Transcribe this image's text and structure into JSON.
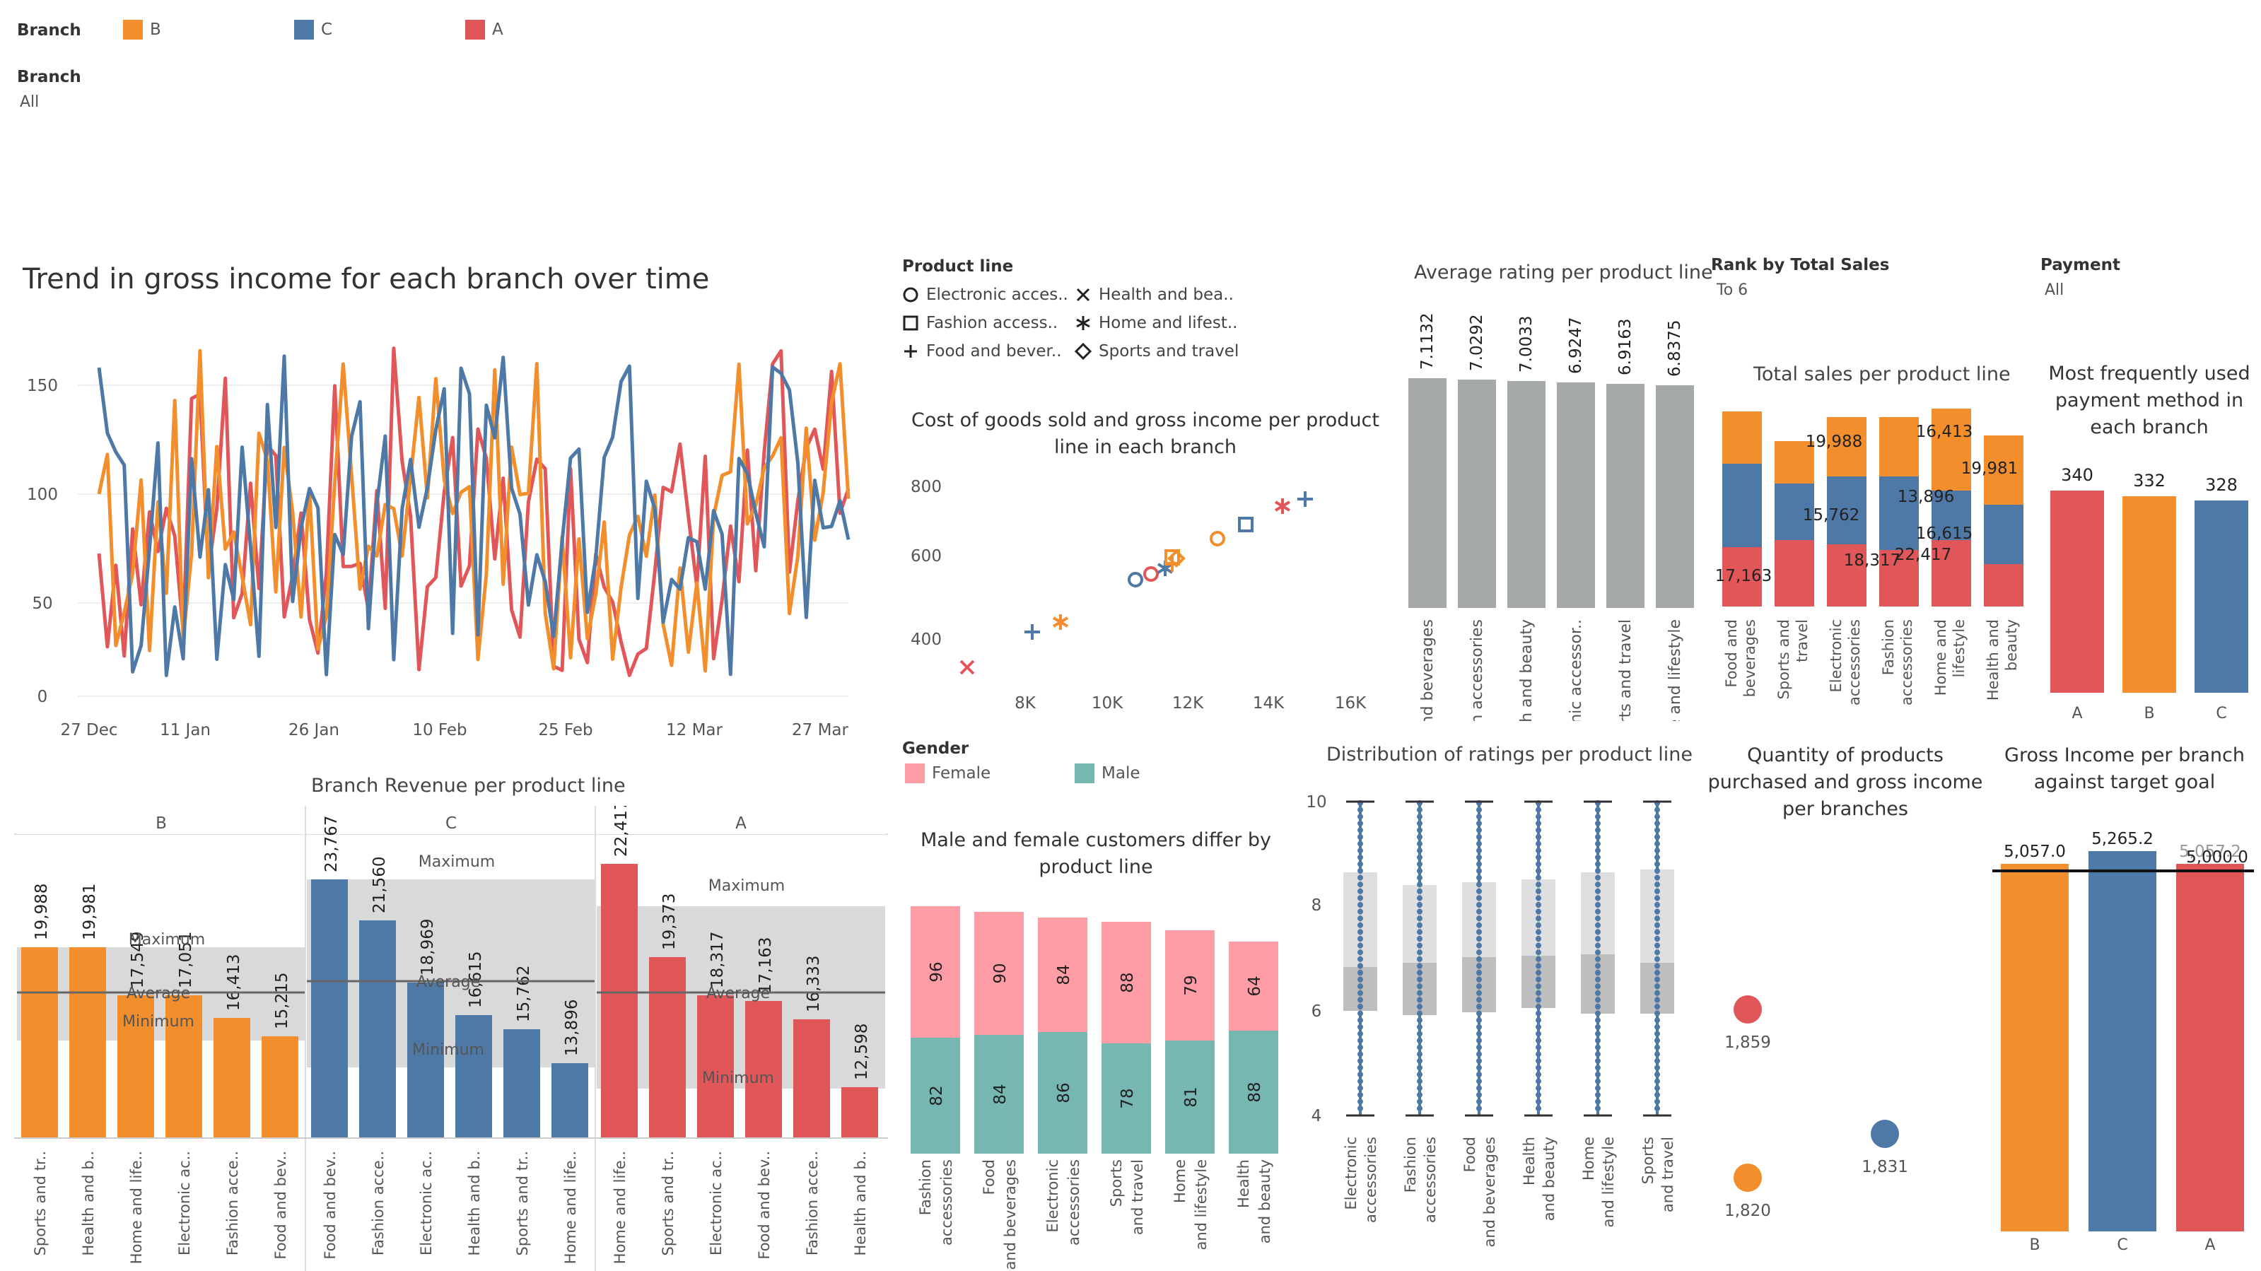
{
  "colors": {
    "A": "#e15759",
    "B": "#f28e2b",
    "C": "#4e79a7",
    "gray": "#a5aaa8",
    "female": "#ff9da7",
    "male": "#76b7b2"
  },
  "branch_legend": {
    "title": "Branch",
    "items": [
      {
        "name": "B",
        "color": "#f28e2b"
      },
      {
        "name": "C",
        "color": "#4e79a7"
      },
      {
        "name": "A",
        "color": "#e15759"
      }
    ]
  },
  "branch_filter": {
    "title": "Branch",
    "value": "All"
  },
  "trend": {
    "title": "Trend in gross income for each branch over time",
    "yticks": [
      "150",
      "100",
      "50",
      "0"
    ],
    "xticks": [
      "27 Dec",
      "11 Jan",
      "26 Jan",
      "10 Feb",
      "25 Feb",
      "12 Mar",
      "27 Mar"
    ]
  },
  "product_legend": {
    "title": "Product line",
    "items": [
      {
        "label": "Electronic acces..",
        "icon": "circle-icon"
      },
      {
        "label": "Health and bea..",
        "icon": "x-icon"
      },
      {
        "label": "Fashion access..",
        "icon": "square-icon"
      },
      {
        "label": "Home and lifest..",
        "icon": "asterisk-icon"
      },
      {
        "label": "Food and bever..",
        "icon": "plus-icon"
      },
      {
        "label": "Sports and travel",
        "icon": "diamond-icon"
      }
    ]
  },
  "scatter": {
    "title": "Cost of goods sold and gross income per product line in each branch",
    "yticks": [
      "800",
      "600",
      "400"
    ],
    "xticks": [
      "8K",
      "10K",
      "12K",
      "14K",
      "16K"
    ]
  },
  "rating": {
    "title": "Average rating per product line",
    "categories": [
      "Food and beverages",
      "Fashion accessories",
      "Health and beauty",
      "Electronic accessor..",
      "Sports and travel",
      "Home and lifestyle"
    ],
    "values": [
      "7.1132",
      "7.0292",
      "7.0033",
      "6.9247",
      "6.9163",
      "6.8375"
    ]
  },
  "rank_filter": {
    "title": "Rank by Total Sales",
    "value": "To 6"
  },
  "payment_filter": {
    "title": "Payment",
    "value": "All"
  },
  "total_sales": {
    "title": "Total sales per product line",
    "categories": [
      "Food and beverages",
      "Sports and travel",
      "Electronic accessories",
      "Fashion accessories",
      "Home and lifestyle",
      "Health and beauty"
    ],
    "labels": [
      "17,163",
      "19,988",
      "15,762",
      "18,317",
      "16,413",
      "22,417",
      "13,896",
      "16,615",
      "19,981"
    ]
  },
  "payment": {
    "title": "Most frequently used payment method in each branch",
    "categories": [
      "A",
      "B",
      "C"
    ],
    "values": [
      "340",
      "332",
      "328"
    ]
  },
  "gender_legend": {
    "title": "Gender",
    "female": "Female",
    "male": "Male"
  },
  "gender": {
    "title": "Male and female customers differ by product line",
    "categories": [
      "Fashion accessories",
      "Food and beverages",
      "Electronic accessories",
      "Sports and travel",
      "Home and lifestyle",
      "Health and beauty"
    ],
    "female": [
      "96",
      "90",
      "84",
      "88",
      "79",
      "64"
    ],
    "male": [
      "82",
      "84",
      "86",
      "78",
      "81",
      "88"
    ]
  },
  "distribution": {
    "title": "Distribution of ratings per product line",
    "yticks": [
      "10",
      "8",
      "6",
      "4"
    ],
    "categories": [
      "Electronic accessories",
      "Fashion accessories",
      "Food and beverages",
      "Health and beauty",
      "Home and lifestyle",
      "Sports and travel"
    ]
  },
  "quantity": {
    "title": "Quantity of products purchased and gross income per branches",
    "labels": [
      "1,859",
      "1,820",
      "1,831"
    ]
  },
  "goal": {
    "title": "Gross Income per branch against target goal",
    "labels": [
      "5,057.0",
      "5,265.2",
      "5,057.2",
      "5,000.0"
    ],
    "categories": [
      "B",
      "C",
      "A"
    ]
  },
  "revenue": {
    "title": "Branch Revenue per product line",
    "panels": [
      {
        "name": "B",
        "values": [
          "19,988",
          "19,981",
          "17,549",
          "17,051",
          "16,413",
          "15,215"
        ],
        "cats": [
          "Sports and tr..",
          "Health and b..",
          "Home and life..",
          "Electronic ac..",
          "Fashion acce..",
          "Food and bev.."
        ]
      },
      {
        "name": "C",
        "values": [
          "23,767",
          "21,560",
          "18,969",
          "16,615",
          "15,762",
          "13,896"
        ],
        "cats": [
          "Food and bev..",
          "Fashion acce..",
          "Electronic ac..",
          "Health and b..",
          "Sports and tr..",
          "Home and life.."
        ]
      },
      {
        "name": "A",
        "values": [
          "22,417",
          "19,373",
          "18,317",
          "17,163",
          "16,333",
          "12,598"
        ],
        "cats": [
          "Home and life..",
          "Sports and tr..",
          "Electronic ac..",
          "Food and bev..",
          "Fashion acce..",
          "Health and b.."
        ]
      }
    ],
    "ref": {
      "max": "Maximum",
      "avg": "Average",
      "min": "Minimum"
    }
  }
}
